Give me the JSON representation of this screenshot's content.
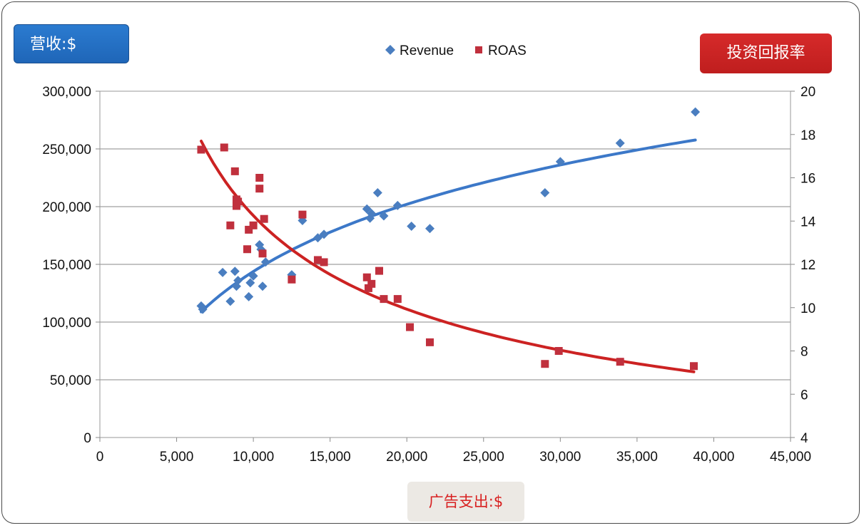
{
  "labels": {
    "left_axis_badge": "营收:$",
    "right_axis_badge": "投资回报率",
    "x_axis_badge": "广告支出:$"
  },
  "colors": {
    "revenue": "#4a7ec0",
    "roas": "#c0303d",
    "revenue_trend": "#3c78c8",
    "roas_trend": "#cc2222",
    "left_badge": "#2470c4",
    "right_badge": "#cc2222"
  },
  "chart_data": {
    "type": "scatter",
    "legend_position": "top-center",
    "grid": true,
    "x_range": [
      0,
      45000
    ],
    "y_left_range": [
      0,
      300000
    ],
    "y_right_range": [
      4,
      20
    ],
    "x_ticks": [
      "0",
      "5,000",
      "10,000",
      "15,000",
      "20,000",
      "25,000",
      "30,000",
      "35,000",
      "40,000",
      "45,000"
    ],
    "y_left_ticks": [
      "0",
      "50,000",
      "100,000",
      "150,000",
      "200,000",
      "250,000",
      "300,000"
    ],
    "y_right_ticks": [
      "4",
      "6",
      "8",
      "10",
      "12",
      "14",
      "16",
      "18",
      "20"
    ],
    "series": [
      {
        "name": "Revenue",
        "axis": "left",
        "marker": "diamond",
        "points": [
          [
            6600,
            114000
          ],
          [
            6700,
            111000
          ],
          [
            8000,
            143000
          ],
          [
            8500,
            118000
          ],
          [
            8800,
            144000
          ],
          [
            8900,
            131000
          ],
          [
            9000,
            136000
          ],
          [
            9700,
            122000
          ],
          [
            9800,
            134000
          ],
          [
            10000,
            140000
          ],
          [
            10400,
            167000
          ],
          [
            10500,
            163000
          ],
          [
            10600,
            131000
          ],
          [
            10800,
            152000
          ],
          [
            12500,
            141000
          ],
          [
            13200,
            188000
          ],
          [
            14200,
            173000
          ],
          [
            14600,
            176000
          ],
          [
            17400,
            198000
          ],
          [
            17600,
            190000
          ],
          [
            17700,
            194000
          ],
          [
            18100,
            212000
          ],
          [
            18500,
            192000
          ],
          [
            19400,
            201000
          ],
          [
            20300,
            183000
          ],
          [
            21500,
            181000
          ],
          [
            29000,
            212000
          ],
          [
            30000,
            239000
          ],
          [
            33900,
            255000
          ],
          [
            38800,
            282000
          ]
        ],
        "trend": "logarithmic"
      },
      {
        "name": "ROAS",
        "axis": "right",
        "marker": "square",
        "points": [
          [
            6600,
            17.3
          ],
          [
            8100,
            17.4
          ],
          [
            8500,
            13.8
          ],
          [
            8800,
            16.3
          ],
          [
            8900,
            14.7
          ],
          [
            8900,
            15.0
          ],
          [
            9000,
            14.9
          ],
          [
            9600,
            12.7
          ],
          [
            9700,
            13.6
          ],
          [
            10000,
            13.8
          ],
          [
            10400,
            16.0
          ],
          [
            10400,
            15.5
          ],
          [
            10600,
            12.5
          ],
          [
            10700,
            14.1
          ],
          [
            12500,
            11.3
          ],
          [
            13200,
            14.3
          ],
          [
            14200,
            12.2
          ],
          [
            14600,
            12.1
          ],
          [
            17400,
            11.4
          ],
          [
            17500,
            10.9
          ],
          [
            17700,
            11.1
          ],
          [
            18200,
            11.7
          ],
          [
            18500,
            10.4
          ],
          [
            19400,
            10.4
          ],
          [
            20200,
            9.1
          ],
          [
            21500,
            8.4
          ],
          [
            29000,
            7.4
          ],
          [
            29900,
            8.0
          ],
          [
            33900,
            7.5
          ],
          [
            38700,
            7.3
          ]
        ],
        "trend": "power"
      }
    ]
  }
}
